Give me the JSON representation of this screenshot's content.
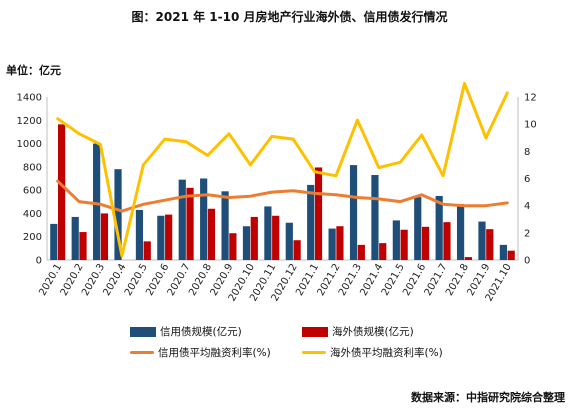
{
  "title": "图：2021 年 1-10 月房地产行业海外债、信用债发行情况",
  "unit_label": "单位：亿元",
  "source": "数据来源：中指研究院综合整理",
  "chart_data": {
    "type": "bar",
    "categories": [
      "2020.1",
      "2020.2",
      "2020.3",
      "2020.4",
      "2020.5",
      "2020.6",
      "2020.7",
      "2020.8",
      "2020.9",
      "2020.10",
      "2020.11",
      "2020.12",
      "2021.1",
      "2021.2",
      "2021.3",
      "2021.4",
      "2021.5",
      "2021.6",
      "2021.7",
      "2021.8",
      "2021.9",
      "2021.10"
    ],
    "y_left": {
      "min": 0,
      "max": 1400,
      "step": 200,
      "ticks": [
        "0",
        "200",
        "400",
        "600",
        "800",
        "1000",
        "1200",
        "1400"
      ]
    },
    "y_right": {
      "min": 0,
      "max": 12,
      "step": 2,
      "ticks": [
        "0",
        "2",
        "4",
        "6",
        "8",
        "10",
        "12"
      ]
    },
    "series": [
      {
        "name": "信用债规模(亿元)",
        "kind": "bar",
        "axis": "left",
        "color": "#1F4E79",
        "values": [
          310,
          370,
          1000,
          780,
          430,
          380,
          690,
          700,
          590,
          290,
          460,
          320,
          645,
          270,
          815,
          730,
          340,
          540,
          550,
          480,
          330,
          130
        ]
      },
      {
        "name": "海外债规模(亿元)",
        "kind": "bar",
        "axis": "left",
        "color": "#C00000",
        "values": [
          1165,
          240,
          400,
          0,
          160,
          390,
          620,
          440,
          230,
          370,
          380,
          170,
          795,
          290,
          130,
          145,
          260,
          285,
          325,
          25,
          265,
          80
        ]
      },
      {
        "name": "信用债平均融资利率(%)",
        "kind": "line",
        "axis": "right",
        "color": "#ED7D31",
        "values": [
          5.8,
          4.3,
          4.1,
          3.6,
          4.1,
          4.4,
          4.7,
          4.8,
          4.6,
          4.7,
          5.0,
          5.1,
          4.9,
          4.8,
          4.6,
          4.5,
          4.3,
          4.8,
          4.1,
          4.0,
          4.0,
          4.2
        ]
      },
      {
        "name": "海外债平均融资利率(%)",
        "kind": "line",
        "axis": "right",
        "color": "#FFC000",
        "values": [
          10.4,
          9.3,
          8.5,
          0.3,
          7.0,
          8.9,
          8.7,
          7.7,
          9.3,
          7.0,
          9.1,
          8.9,
          6.5,
          6.2,
          10.3,
          6.8,
          7.2,
          9.2,
          6.2,
          13.0,
          9.0,
          12.3
        ]
      }
    ]
  }
}
